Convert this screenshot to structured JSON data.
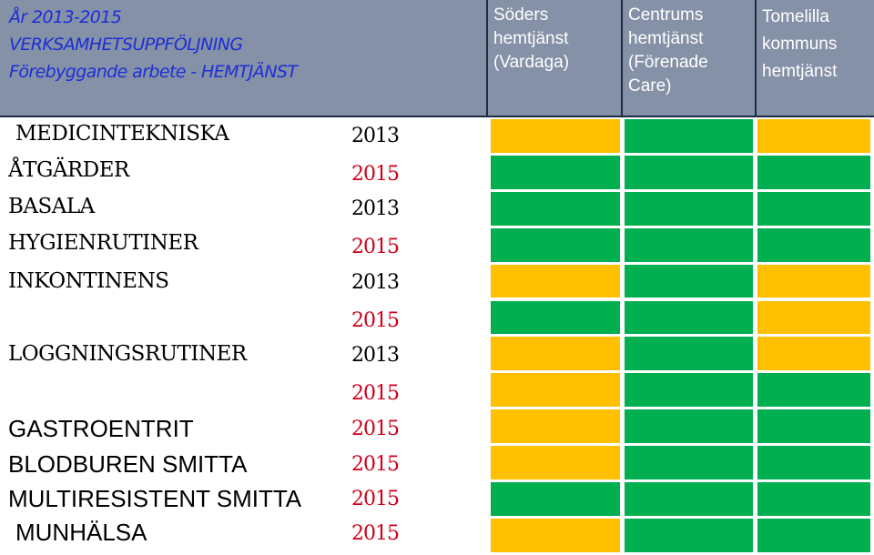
{
  "header": {
    "title_lines": [
      "År 2013-2015",
      "VERKSAMHETSUPPFÖLJNING",
      "Förebyggande arbete - HEMTJÄNST"
    ],
    "columns": [
      {
        "lines": [
          "Söders",
          "hemtjänst",
          "(Vardaga)"
        ]
      },
      {
        "lines": [
          "Centrums",
          "hemtjänst",
          "(Förenade",
          "Care)"
        ]
      },
      {
        "lines": [
          "Tomelilla",
          "kommuns",
          "hemtjänst"
        ]
      }
    ]
  },
  "colors": {
    "green": "#00b050",
    "yellow": "#ffc000",
    "header_bg": "#8591a7",
    "title_blue": "#1d2ed6",
    "year_red": "#d0001a"
  },
  "categories": [
    {
      "label": "MEDICINTEKNISKA"
    },
    {
      "label": "ÅTGÄRDER"
    },
    {
      "label": "BASALA"
    },
    {
      "label": "HYGIENRUTINER"
    },
    {
      "label": "INKONTINENS"
    },
    {
      "label": "LOGGNINGSRUTINER"
    },
    {
      "label": "GASTROENTRIT"
    },
    {
      "label": "BLODBUREN SMITTA"
    },
    {
      "label": "MULTIRESISTENT SMITTA"
    },
    {
      "label": "MUNHÄLSA"
    }
  ],
  "years": [
    "2013",
    "2015",
    "2013",
    "2015",
    "2013",
    "2015",
    "2013",
    "2015",
    "2015",
    "2015",
    "2015",
    "2015"
  ],
  "status": [
    [
      "yellow",
      "green",
      "yellow"
    ],
    [
      "green",
      "green",
      "green"
    ],
    [
      "green",
      "green",
      "green"
    ],
    [
      "green",
      "green",
      "green"
    ],
    [
      "yellow",
      "green",
      "yellow"
    ],
    [
      "green",
      "green",
      "yellow"
    ],
    [
      "yellow",
      "green",
      "yellow"
    ],
    [
      "yellow",
      "green",
      "green"
    ],
    [
      "yellow",
      "green",
      "green"
    ],
    [
      "yellow",
      "green",
      "green"
    ],
    [
      "green",
      "green",
      "green"
    ],
    [
      "yellow",
      "green",
      "green"
    ]
  ]
}
